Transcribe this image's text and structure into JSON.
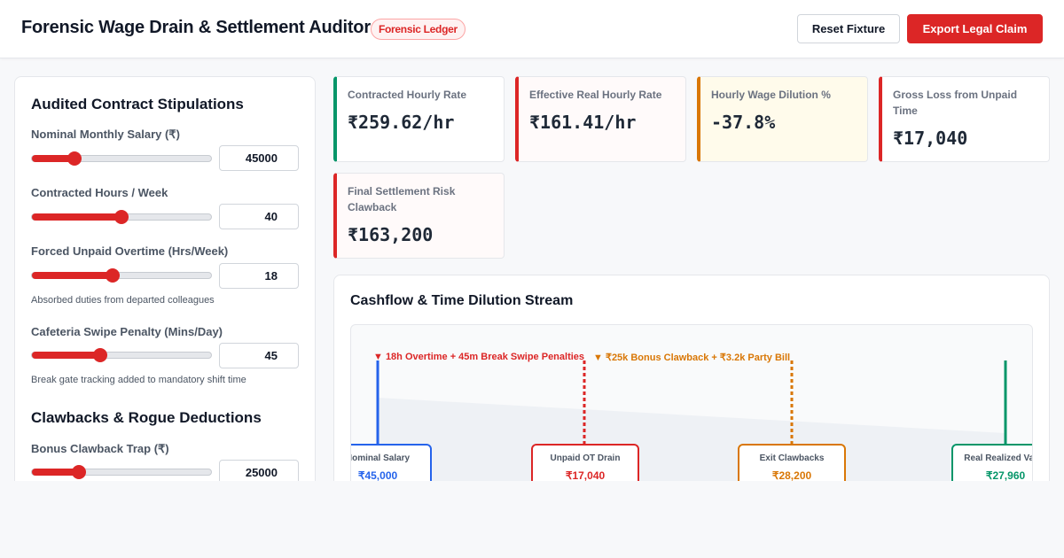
{
  "header": {
    "title": "Forensic Wage Drain & Settlement Auditor",
    "badge": "Forensic Ledger",
    "reset_label": "Reset Fixture",
    "export_label": "Export Legal Claim"
  },
  "colors": {
    "accent": "#dc2626",
    "positive": "#059669",
    "warning": "#d97706",
    "salary": "#2563eb"
  },
  "controls": {
    "section1_title": "Audited Contract Stipulations",
    "section2_title": "Clawbacks & Rogue Deductions",
    "sliders": [
      {
        "label": "Nominal Monthly Salary (₹)",
        "value": "45000",
        "fraction": 0.24
      },
      {
        "label": "Contracted Hours / Week",
        "value": "40",
        "fraction": 0.5
      },
      {
        "label": "Forced Unpaid Overtime (Hrs/Week)",
        "value": "18",
        "fraction": 0.45,
        "hint": "Absorbed duties from departed colleagues"
      },
      {
        "label": "Cafeteria Swipe Penalty (Mins/Day)",
        "value": "45",
        "fraction": 0.38,
        "hint": "Break gate tracking added to mandatory shift time"
      },
      {
        "label": "Bonus Clawback Trap (₹)",
        "value": "25000",
        "fraction": 0.26
      }
    ]
  },
  "kpis": [
    {
      "label": "Contracted Hourly Rate",
      "value": "₹259.62/hr"
    },
    {
      "label": "Effective Real Hourly Rate",
      "value": "₹161.41/hr"
    },
    {
      "label": "Hourly Wage Dilution %",
      "value": "-37.8%"
    },
    {
      "label": "Gross Loss from Unpaid Time",
      "value": "₹17,040"
    },
    {
      "label": "Final Settlement Risk Clawback",
      "value": "₹163,200"
    }
  ],
  "stream": {
    "title": "Cashflow & Time Dilution Stream",
    "annotations": [
      "▼ 18h Overtime + 45m Break Swipe Penalties",
      "▼ ₹25k Bonus Clawback + ₹3.2k Party Bill"
    ],
    "nodes": [
      {
        "label": "Nominal Salary",
        "value": "₹45,000"
      },
      {
        "label": "Unpaid OT Drain",
        "value": "₹17,040"
      },
      {
        "label": "Exit Clawbacks",
        "value": "₹28,200"
      },
      {
        "label": "Real Realized Value",
        "value": "₹27,960"
      }
    ]
  }
}
